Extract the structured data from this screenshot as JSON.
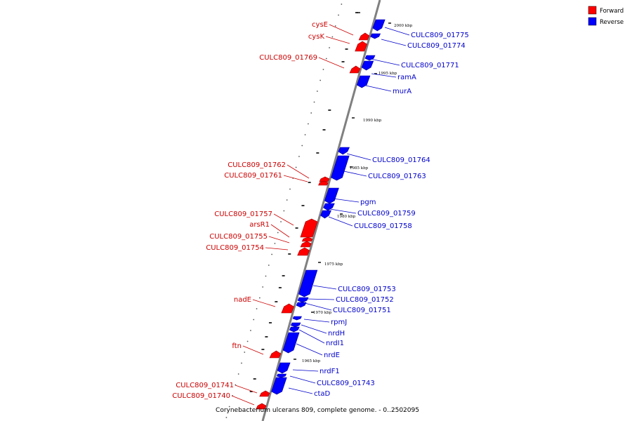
{
  "colors": {
    "forward": "#ff0000",
    "reverse": "#0000ff",
    "label_forward": "#cc0000",
    "label_reverse": "#0000cc",
    "backbone": "#808080"
  },
  "legend": [
    {
      "label": "Forward",
      "color": "#ff0000"
    },
    {
      "label": "Reverse",
      "color": "#0000ff"
    }
  ],
  "caption": "Corynebacterium ulcerans 809, complete genome. - 0..2502095",
  "scale_labels": [
    "2000 kbp",
    "1995 kbp",
    "1990 kbp",
    "1985 kbp",
    "1980 kbp",
    "1975 kbp",
    "1970 kbp",
    "1965 kbp"
  ],
  "genes": [
    {
      "name": "cysE",
      "strand": "forward"
    },
    {
      "name": "cysK",
      "strand": "forward"
    },
    {
      "name": "CULC809_01769",
      "strand": "forward"
    },
    {
      "name": "CULC809_01775",
      "strand": "reverse"
    },
    {
      "name": "CULC809_01774",
      "strand": "reverse"
    },
    {
      "name": "CULC809_01771",
      "strand": "reverse"
    },
    {
      "name": "ramA",
      "strand": "reverse"
    },
    {
      "name": "murA",
      "strand": "reverse"
    },
    {
      "name": "CULC809_01764",
      "strand": "reverse"
    },
    {
      "name": "CULC809_01763",
      "strand": "reverse"
    },
    {
      "name": "CULC809_01762",
      "strand": "forward"
    },
    {
      "name": "CULC809_01761",
      "strand": "forward"
    },
    {
      "name": "pgm",
      "strand": "reverse"
    },
    {
      "name": "CULC809_01759",
      "strand": "reverse"
    },
    {
      "name": "CULC809_01758",
      "strand": "reverse"
    },
    {
      "name": "CULC809_01757",
      "strand": "forward"
    },
    {
      "name": "arsR1",
      "strand": "forward"
    },
    {
      "name": "CULC809_01755",
      "strand": "forward"
    },
    {
      "name": "CULC809_01754",
      "strand": "forward"
    },
    {
      "name": "CULC809_01753",
      "strand": "reverse"
    },
    {
      "name": "CULC809_01752",
      "strand": "reverse"
    },
    {
      "name": "CULC809_01751",
      "strand": "reverse"
    },
    {
      "name": "nadE",
      "strand": "forward"
    },
    {
      "name": "rpmJ",
      "strand": "reverse"
    },
    {
      "name": "nrdH",
      "strand": "reverse"
    },
    {
      "name": "nrdI1",
      "strand": "reverse"
    },
    {
      "name": "nrdE",
      "strand": "reverse"
    },
    {
      "name": "ftn",
      "strand": "forward"
    },
    {
      "name": "nrdF1",
      "strand": "reverse"
    },
    {
      "name": "CULC809_01743",
      "strand": "reverse"
    },
    {
      "name": "ctaD",
      "strand": "reverse"
    },
    {
      "name": "CULC809_01741",
      "strand": "forward"
    },
    {
      "name": "CULC809_01740",
      "strand": "forward"
    }
  ]
}
